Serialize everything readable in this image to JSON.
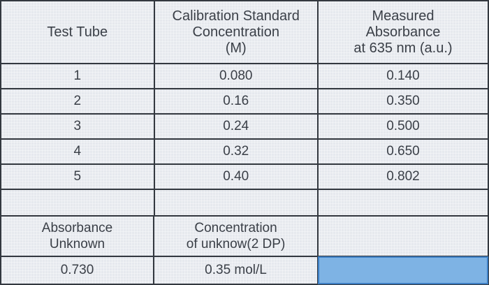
{
  "table": {
    "headers": {
      "col1": "Test Tube",
      "col2": [
        "Calibration Standard",
        "Concentration",
        "(M)"
      ],
      "col3": [
        "Measured",
        "Absorbance",
        "at 635 nm (a.u.)"
      ]
    },
    "rows": [
      {
        "tube": "1",
        "concentration": "0.080",
        "absorbance": "0.140"
      },
      {
        "tube": "2",
        "concentration": "0.16",
        "absorbance": "0.350"
      },
      {
        "tube": "3",
        "concentration": "0.24",
        "absorbance": "0.500"
      },
      {
        "tube": "4",
        "concentration": "0.32",
        "absorbance": "0.650"
      },
      {
        "tube": "5",
        "concentration": "0.40",
        "absorbance": "0.802"
      }
    ]
  },
  "unknown": {
    "absorbance_label": [
      "Absorbance",
      "Unknown"
    ],
    "absorbance_value": "0.730",
    "concentration_label": [
      "Concentration",
      "of unknow(2 DP)"
    ],
    "concentration_value": "0.35 mol/L",
    "selected_cell_value": ""
  }
}
